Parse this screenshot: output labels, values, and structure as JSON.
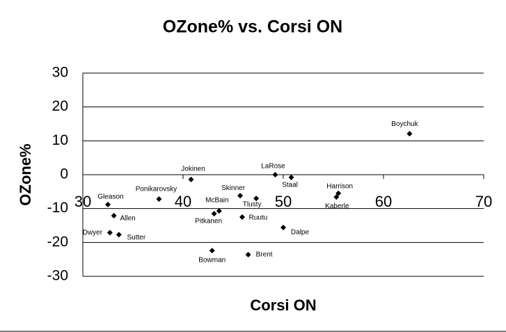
{
  "chart_data": {
    "type": "scatter",
    "title": "OZone% vs. Corsi ON",
    "x_label": "Corsi ON",
    "y_label": "OZone%",
    "xlim": [
      30,
      70
    ],
    "xticks": [
      30,
      40,
      50,
      60,
      70
    ],
    "ylim": [
      -30,
      30
    ],
    "yticks": [
      -30,
      -20,
      -10,
      0,
      10,
      20,
      30
    ],
    "grid": true,
    "color": "#000000",
    "series": [
      {
        "labels": [
          "Boychuk",
          "Jokinen",
          "LaRose",
          "Staal",
          "Harrison",
          "Kaberle",
          "Gleason",
          "Ponikarovsky",
          "Skinner",
          "Tlusty",
          "McBain",
          "Pitkanen",
          "Ruutu",
          "Allen",
          "Dalpe",
          "Dwyer",
          "Sutter",
          "Bowman",
          "Brent"
        ],
        "x": [
          62.6,
          40.8,
          49.2,
          50.8,
          55.5,
          55.3,
          32.5,
          37.6,
          45.7,
          47.3,
          43.6,
          43.1,
          45.9,
          33.1,
          50.0,
          32.7,
          33.6,
          42.9,
          46.5
        ],
        "values": [
          12.1,
          -1.4,
          0.0,
          -0.8,
          -5.5,
          -6.6,
          -8.8,
          -7.2,
          -6.2,
          -7.0,
          -10.7,
          -11.5,
          -12.5,
          -12.1,
          -15.6,
          -17.1,
          -17.7,
          -22.4,
          -23.6
        ]
      }
    ]
  }
}
